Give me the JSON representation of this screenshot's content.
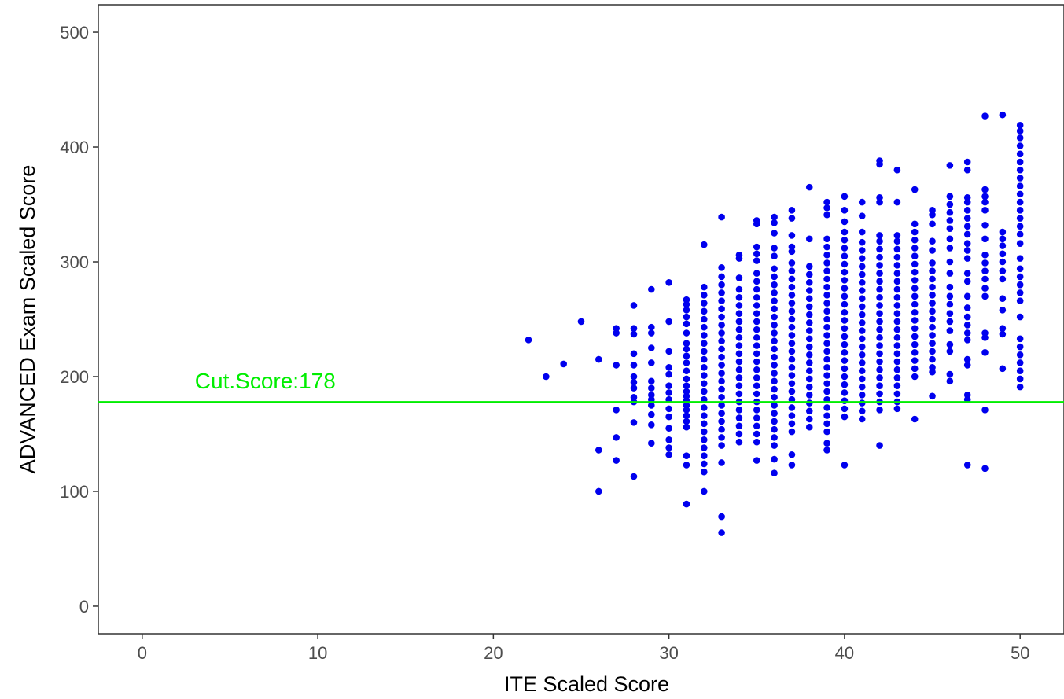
{
  "chart_data": {
    "type": "scatter",
    "title": "",
    "xlabel": "ITE Scaled Score",
    "ylabel": "ADVANCED Exam Scaled Score",
    "xlim": [
      -2.5,
      52.5
    ],
    "ylim": [
      -24,
      524
    ],
    "x_ticks": [
      0,
      10,
      20,
      30,
      40,
      50
    ],
    "x_tick_labels": [
      "0",
      "10",
      "20",
      "30",
      "40",
      "50"
    ],
    "y_ticks": [
      0,
      100,
      200,
      300,
      400,
      500
    ],
    "y_tick_labels": [
      "0",
      "100",
      "200",
      "300",
      "400",
      "500"
    ],
    "grid": false,
    "point_color": "#0000ee",
    "reference_line": {
      "y": 178,
      "label": "Cut.Score:178",
      "label_x": 3,
      "color": "#00ee00"
    },
    "points_by_x": [
      {
        "x": 22,
        "y": [
          232
        ]
      },
      {
        "x": 23,
        "y": [
          200
        ]
      },
      {
        "x": 24,
        "y": [
          211
        ]
      },
      {
        "x": 25,
        "y": [
          248
        ]
      },
      {
        "x": 26,
        "y": [
          100,
          136,
          215
        ]
      },
      {
        "x": 27,
        "y": [
          127,
          147,
          171,
          210,
          238,
          242
        ]
      },
      {
        "x": 28,
        "y": [
          113,
          160,
          178,
          182,
          190,
          195,
          200,
          210,
          220,
          237,
          242,
          262
        ]
      },
      {
        "x": 29,
        "y": [
          142,
          158,
          167,
          175,
          180,
          184,
          190,
          196,
          212,
          225,
          238,
          243,
          276
        ]
      },
      {
        "x": 30,
        "y": [
          132,
          138,
          145,
          155,
          165,
          172,
          180,
          186,
          192,
          202,
          208,
          222,
          248,
          282
        ]
      },
      {
        "x": 31,
        "y": [
          89,
          123,
          131,
          156,
          161,
          166,
          171,
          175,
          179,
          183,
          187,
          192,
          198,
          205,
          212,
          218,
          224,
          229,
          238,
          246,
          252,
          258,
          263,
          267
        ]
      },
      {
        "x": 32,
        "y": [
          100,
          117,
          124,
          131,
          138,
          145,
          152,
          159,
          166,
          173,
          180,
          187,
          194,
          201,
          208,
          215,
          222,
          229,
          236,
          243,
          250,
          257,
          264,
          271,
          278,
          315
        ]
      },
      {
        "x": 33,
        "y": [
          64,
          78,
          125,
          140,
          147,
          154,
          161,
          168,
          175,
          182,
          189,
          196,
          203,
          210,
          217,
          224,
          231,
          238,
          245,
          252,
          259,
          266,
          273,
          280,
          287,
          295,
          339
        ]
      },
      {
        "x": 34,
        "y": [
          143,
          150,
          157,
          164,
          171,
          178,
          185,
          192,
          199,
          206,
          213,
          220,
          227,
          234,
          241,
          248,
          255,
          262,
          269,
          276,
          286,
          303,
          306
        ]
      },
      {
        "x": 35,
        "y": [
          127,
          143,
          150,
          157,
          164,
          171,
          178,
          185,
          192,
          199,
          206,
          213,
          220,
          227,
          234,
          241,
          248,
          255,
          262,
          269,
          276,
          283,
          290,
          301,
          307,
          313,
          333,
          336
        ]
      },
      {
        "x": 36,
        "y": [
          116,
          128,
          140,
          147,
          154,
          161,
          168,
          175,
          182,
          189,
          196,
          203,
          210,
          217,
          224,
          231,
          238,
          245,
          252,
          259,
          266,
          273,
          280,
          287,
          294,
          305,
          312,
          325,
          334,
          339
        ]
      },
      {
        "x": 37,
        "y": [
          123,
          132,
          152,
          159,
          166,
          173,
          180,
          187,
          194,
          201,
          208,
          215,
          222,
          229,
          236,
          243,
          250,
          257,
          264,
          271,
          278,
          285,
          292,
          299,
          309,
          313,
          323,
          338,
          345
        ]
      },
      {
        "x": 38,
        "y": [
          156,
          163,
          170,
          177,
          184,
          191,
          198,
          205,
          212,
          219,
          226,
          233,
          240,
          247,
          254,
          261,
          268,
          275,
          282,
          289,
          296,
          320,
          365
        ]
      },
      {
        "x": 39,
        "y": [
          136,
          142,
          152,
          159,
          166,
          173,
          180,
          187,
          194,
          201,
          208,
          215,
          222,
          229,
          236,
          243,
          250,
          257,
          264,
          271,
          278,
          285,
          292,
          299,
          306,
          313,
          320,
          341,
          347,
          352
        ]
      },
      {
        "x": 40,
        "y": [
          123,
          165,
          172,
          179,
          186,
          193,
          200,
          207,
          214,
          221,
          228,
          235,
          242,
          249,
          256,
          263,
          270,
          277,
          284,
          291,
          298,
          305,
          312,
          319,
          326,
          335,
          345,
          357
        ]
      },
      {
        "x": 41,
        "y": [
          163,
          170,
          177,
          184,
          191,
          198,
          205,
          212,
          219,
          226,
          233,
          240,
          247,
          254,
          261,
          268,
          275,
          282,
          289,
          296,
          303,
          310,
          317,
          326,
          340,
          352
        ]
      },
      {
        "x": 42,
        "y": [
          140,
          171,
          178,
          185,
          192,
          199,
          206,
          213,
          220,
          227,
          234,
          241,
          248,
          255,
          262,
          269,
          276,
          283,
          290,
          297,
          304,
          311,
          318,
          323,
          352,
          356,
          385,
          388
        ]
      },
      {
        "x": 43,
        "y": [
          172,
          178,
          185,
          192,
          199,
          206,
          213,
          220,
          227,
          234,
          241,
          248,
          255,
          262,
          269,
          276,
          283,
          290,
          297,
          304,
          311,
          318,
          323,
          352,
          380
        ]
      },
      {
        "x": 44,
        "y": [
          163,
          200,
          207,
          214,
          221,
          228,
          235,
          242,
          249,
          256,
          263,
          270,
          277,
          284,
          291,
          298,
          305,
          312,
          319,
          326,
          333,
          363
        ]
      },
      {
        "x": 45,
        "y": [
          183,
          204,
          208,
          215,
          222,
          229,
          236,
          243,
          250,
          257,
          264,
          271,
          278,
          285,
          292,
          299,
          310,
          318,
          333,
          341,
          345
        ]
      },
      {
        "x": 46,
        "y": [
          196,
          202,
          222,
          228,
          240,
          248,
          255,
          263,
          270,
          278,
          290,
          300,
          312,
          320,
          329,
          336,
          343,
          350,
          357,
          384
        ]
      },
      {
        "x": 47,
        "y": [
          123,
          180,
          184,
          210,
          215,
          232,
          238,
          245,
          252,
          260,
          270,
          283,
          290,
          303,
          310,
          316,
          324,
          331,
          338,
          345,
          352,
          356,
          380,
          387
        ]
      },
      {
        "x": 48,
        "y": [
          120,
          171,
          221,
          234,
          238,
          270,
          277,
          285,
          292,
          299,
          306,
          320,
          332,
          345,
          352,
          357,
          363,
          427
        ]
      },
      {
        "x": 49,
        "y": [
          207,
          237,
          242,
          258,
          268,
          285,
          292,
          300,
          307,
          314,
          320,
          326,
          428
        ]
      },
      {
        "x": 50,
        "y": [
          191,
          198,
          205,
          212,
          219,
          226,
          233,
          252,
          266,
          273,
          280,
          287,
          294,
          303,
          316,
          324,
          331,
          338,
          345,
          352,
          359,
          366,
          373,
          380,
          387,
          394,
          401,
          408,
          414,
          419
        ]
      }
    ]
  }
}
